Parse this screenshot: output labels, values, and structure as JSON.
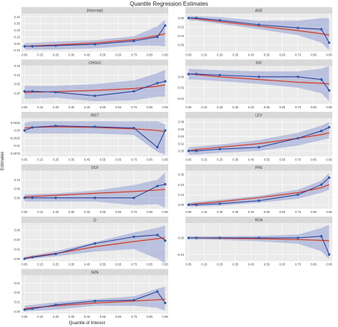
{
  "title": "Quantile Regression Estimates",
  "x_label": "Quantile of Interest",
  "y_label": "Estimates",
  "x_ticks": [
    0.05,
    0.15,
    0.25,
    0.35,
    0.45,
    0.55,
    0.65,
    0.75,
    0.85,
    0.95
  ],
  "colors": {
    "panel_bg": "#ebebeb",
    "grid": "#ffffff",
    "strip_bg": "#d9d9d9",
    "estimate_line": "#2e3f99",
    "estimate_point": "#2e5aa8",
    "fit_line": "#cc2f2f",
    "ci_band": "#7f8fcf",
    "fit_band": "#c9b9b9"
  },
  "chart_data": [
    {
      "type": "line",
      "panel": "(Intercept)",
      "x": [
        0.05,
        0.1,
        0.25,
        0.5,
        0.75,
        0.9,
        0.95
      ],
      "y": [
        -0.04,
        -0.04,
        -0.03,
        -0.01,
        0.04,
        0.1,
        0.27
      ],
      "fit": [
        -0.04,
        -0.035,
        -0.02,
        0.01,
        0.06,
        0.12,
        0.15
      ],
      "ci_lower": [
        -0.09,
        -0.09,
        -0.09,
        -0.07,
        -0.03,
        -0.03,
        -0.04
      ],
      "ci_upper": [
        0.01,
        0.01,
        0.03,
        0.05,
        0.11,
        0.26,
        0.36
      ],
      "ylim": [
        -0.12,
        0.45
      ],
      "yticks": [
        -0.1,
        0.0,
        0.1,
        0.2,
        0.3,
        0.4
      ]
    },
    {
      "type": "line",
      "panel": "AGE",
      "x": [
        0.05,
        0.1,
        0.25,
        0.5,
        0.75,
        0.9,
        0.95
      ],
      "y": [
        0.0,
        0.0,
        -0.005,
        -0.015,
        -0.022,
        -0.025,
        -0.055
      ],
      "fit": [
        0.0,
        -0.002,
        -0.008,
        -0.018,
        -0.028,
        -0.035,
        -0.038
      ],
      "ci_lower": [
        -0.005,
        -0.006,
        -0.013,
        -0.025,
        -0.038,
        -0.055,
        -0.072
      ],
      "ci_upper": [
        0.005,
        0.004,
        0.002,
        -0.006,
        -0.006,
        0.0,
        0.0
      ],
      "ylim": [
        -0.075,
        0.01
      ],
      "yticks": [
        -0.06,
        -0.04,
        -0.02,
        0.0
      ]
    },
    {
      "type": "line",
      "panel": "CHOLD",
      "x": [
        0.05,
        0.1,
        0.25,
        0.5,
        0.75,
        0.9,
        0.95
      ],
      "y": [
        0.01,
        0.01,
        0.005,
        -0.015,
        0.01,
        0.055,
        0.065
      ],
      "fit": [
        0.002,
        0.005,
        0.008,
        0.015,
        0.025,
        0.038,
        0.045
      ],
      "ci_lower": [
        -0.03,
        -0.03,
        -0.025,
        -0.045,
        -0.04,
        -0.02,
        -0.02
      ],
      "ci_upper": [
        0.04,
        0.04,
        0.04,
        0.05,
        0.07,
        0.11,
        0.13
      ],
      "ylim": [
        -0.06,
        0.15
      ],
      "yticks": [
        0.0,
        0.05,
        0.1,
        0.15
      ]
    },
    {
      "type": "line",
      "panel": "DIV",
      "x": [
        0.05,
        0.1,
        0.25,
        0.5,
        0.75,
        0.9,
        0.95
      ],
      "y": [
        0.005,
        0.005,
        0.003,
        0.0,
        0.0,
        -0.005,
        -0.025
      ],
      "fit": [
        0.005,
        0.004,
        0.0,
        -0.005,
        -0.01,
        -0.012,
        -0.013
      ],
      "ci_lower": [
        -0.005,
        -0.005,
        -0.008,
        -0.013,
        -0.02,
        -0.03,
        -0.045
      ],
      "ci_upper": [
        0.015,
        0.014,
        0.012,
        0.01,
        0.01,
        0.015,
        0.02
      ],
      "ylim": [
        -0.05,
        0.02
      ],
      "yticks": [
        -0.04,
        -0.02,
        0.0
      ]
    },
    {
      "type": "line",
      "panel": "INST",
      "x": [
        0.05,
        0.1,
        0.25,
        0.5,
        0.75,
        0.9,
        0.95
      ],
      "y": [
        0.0,
        0.001,
        0.0015,
        0.0012,
        0.0008,
        -0.0055,
        0.0
      ],
      "fit": [
        0.0008,
        0.001,
        0.0012,
        0.001,
        0.0005,
        0.0,
        -0.0004
      ],
      "ci_lower": [
        -0.001,
        -0.001,
        -0.001,
        -0.001,
        -0.0015,
        -0.007,
        -0.008
      ],
      "ci_upper": [
        0.0025,
        0.003,
        0.003,
        0.003,
        0.003,
        0.003,
        0.002
      ],
      "ylim": [
        -0.0085,
        0.004
      ],
      "yticks": [
        -0.0075,
        -0.005,
        -0.0025,
        0.0,
        0.0025
      ]
    },
    {
      "type": "line",
      "panel": "LEV",
      "x": [
        0.05,
        0.1,
        0.25,
        0.5,
        0.75,
        0.9,
        0.95
      ],
      "y": [
        0.0,
        0.0,
        0.005,
        0.01,
        0.035,
        0.055,
        0.065
      ],
      "fit": [
        0.0,
        0.004,
        0.01,
        0.02,
        0.035,
        0.045,
        0.05
      ],
      "ci_lower": [
        -0.01,
        -0.01,
        -0.005,
        0.0,
        0.015,
        0.03,
        0.035
      ],
      "ci_upper": [
        0.01,
        0.012,
        0.018,
        0.03,
        0.05,
        0.07,
        0.08
      ],
      "ylim": [
        -0.015,
        0.09
      ],
      "yticks": [
        0.0,
        0.02,
        0.04,
        0.06,
        0.08
      ]
    },
    {
      "type": "line",
      "panel": "OCF",
      "x": [
        0.05,
        0.1,
        0.25,
        0.5,
        0.75,
        0.9,
        0.95
      ],
      "y": [
        0.0,
        0.0,
        0.0,
        0.0,
        0.0,
        0.065,
        0.075
      ],
      "fit": [
        0.005,
        0.008,
        0.014,
        0.025,
        0.035,
        0.043,
        0.047
      ],
      "ci_lower": [
        -0.02,
        -0.02,
        -0.02,
        -0.02,
        -0.04,
        -0.035,
        -0.055
      ],
      "ci_upper": [
        0.02,
        0.02,
        0.025,
        0.04,
        0.07,
        0.1,
        0.14
      ],
      "ylim": [
        -0.06,
        0.15
      ],
      "yticks": [
        0.0,
        0.05,
        0.1
      ]
    },
    {
      "type": "line",
      "panel": "PPE",
      "x": [
        0.05,
        0.1,
        0.25,
        0.5,
        0.75,
        0.9,
        0.95
      ],
      "y": [
        0.0,
        0.0,
        0.01,
        0.04,
        0.1,
        0.2,
        0.27
      ],
      "fit": [
        0.0,
        0.01,
        0.03,
        0.07,
        0.12,
        0.17,
        0.2
      ],
      "ci_lower": [
        -0.02,
        -0.02,
        -0.01,
        0.02,
        0.06,
        0.12,
        0.15
      ],
      "ci_upper": [
        0.02,
        0.03,
        0.05,
        0.09,
        0.15,
        0.24,
        0.32
      ],
      "ylim": [
        -0.04,
        0.34
      ],
      "yticks": [
        0.0,
        0.1,
        0.2,
        0.3
      ]
    },
    {
      "type": "line",
      "panel": "Q",
      "x": [
        0.05,
        0.1,
        0.25,
        0.5,
        0.75,
        0.9,
        0.95
      ],
      "y": [
        0.0,
        0.003,
        0.01,
        0.032,
        0.046,
        0.05,
        0.038
      ],
      "fit": [
        0.001,
        0.004,
        0.011,
        0.025,
        0.036,
        0.042,
        0.044
      ],
      "ci_lower": [
        -0.002,
        0.0,
        0.005,
        0.015,
        0.02,
        0.0,
        -0.01
      ],
      "ci_upper": [
        0.004,
        0.007,
        0.016,
        0.035,
        0.055,
        0.065,
        0.07
      ],
      "ylim": [
        -0.005,
        0.075
      ],
      "yticks": [
        0.0,
        0.02,
        0.04,
        0.06
      ]
    },
    {
      "type": "line",
      "panel": "ROA",
      "x": [
        0.05,
        0.1,
        0.25,
        0.5,
        0.75,
        0.9,
        0.95
      ],
      "y": [
        0.0,
        0.0,
        0.0,
        0.0,
        0.0,
        0.01,
        -0.1
      ],
      "fit": [
        0.0,
        0.0,
        -0.002,
        -0.005,
        -0.01,
        -0.015,
        -0.017
      ],
      "ci_lower": [
        -0.01,
        -0.01,
        -0.012,
        -0.02,
        -0.035,
        -0.08,
        -0.13
      ],
      "ci_upper": [
        0.01,
        0.01,
        0.01,
        0.012,
        0.02,
        0.06,
        0.08
      ],
      "ylim": [
        -0.14,
        0.09
      ],
      "yticks": [
        -0.1,
        0.0
      ]
    },
    {
      "type": "line",
      "panel": "SIZE",
      "x": [
        0.05,
        0.1,
        0.25,
        0.5,
        0.75,
        0.9,
        0.95
      ],
      "y": [
        0.001,
        0.0015,
        0.0035,
        0.0055,
        0.006,
        0.0105,
        0.0045
      ],
      "fit": [
        0.0015,
        0.002,
        0.003,
        0.0045,
        0.0055,
        0.0062,
        0.0065
      ],
      "ci_lower": [
        0.0,
        0.0003,
        0.001,
        0.003,
        0.003,
        0.002,
        0.0005
      ],
      "ci_upper": [
        0.003,
        0.0035,
        0.005,
        0.0065,
        0.008,
        0.012,
        0.013
      ],
      "ylim": [
        -0.001,
        0.019
      ],
      "yticks": [
        0.0,
        0.005,
        0.01,
        0.015
      ]
    }
  ]
}
